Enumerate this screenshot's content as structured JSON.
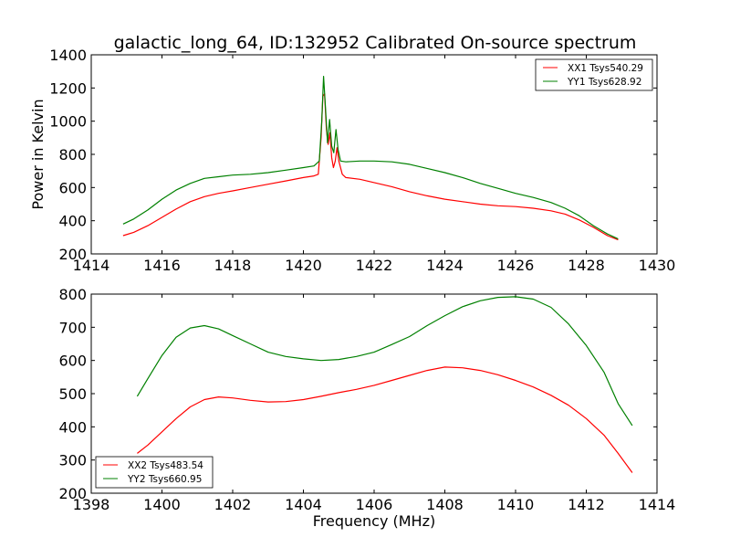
{
  "figure": {
    "title": "galactic_long_64, ID:132952 Calibrated On-source spectrum"
  },
  "chart_data": [
    {
      "type": "line",
      "title": "galactic_long_64, ID:132952 Calibrated On-source spectrum",
      "xlabel": "",
      "ylabel": "Power in Kelvin",
      "xlim": [
        1414,
        1430
      ],
      "ylim": [
        200,
        1400
      ],
      "xticks": [
        "1414",
        "1416",
        "1418",
        "1420",
        "1422",
        "1424",
        "1426",
        "1428",
        "1430"
      ],
      "yticks": [
        "200",
        "400",
        "600",
        "800",
        "1000",
        "1200",
        "1400"
      ],
      "grid": false,
      "legend_position": "upper right",
      "series": [
        {
          "name": "XX1 Tsys540.29",
          "color": "#ff0000",
          "points": [
            [
              1414.9,
              310
            ],
            [
              1415.2,
              330
            ],
            [
              1415.6,
              370
            ],
            [
              1416.0,
              420
            ],
            [
              1416.4,
              470
            ],
            [
              1416.8,
              515
            ],
            [
              1417.2,
              545
            ],
            [
              1417.6,
              565
            ],
            [
              1418.0,
              580
            ],
            [
              1418.5,
              600
            ],
            [
              1419.0,
              620
            ],
            [
              1419.5,
              640
            ],
            [
              1420.0,
              660
            ],
            [
              1420.3,
              670
            ],
            [
              1420.42,
              680
            ],
            [
              1420.5,
              900
            ],
            [
              1420.55,
              1150
            ],
            [
              1420.6,
              1165
            ],
            [
              1420.65,
              950
            ],
            [
              1420.7,
              860
            ],
            [
              1420.75,
              930
            ],
            [
              1420.8,
              780
            ],
            [
              1420.85,
              720
            ],
            [
              1420.9,
              760
            ],
            [
              1420.95,
              840
            ],
            [
              1421.0,
              760
            ],
            [
              1421.1,
              680
            ],
            [
              1421.2,
              660
            ],
            [
              1421.6,
              650
            ],
            [
              1422.0,
              630
            ],
            [
              1422.5,
              605
            ],
            [
              1423.0,
              575
            ],
            [
              1423.5,
              550
            ],
            [
              1424.0,
              530
            ],
            [
              1424.5,
              515
            ],
            [
              1425.0,
              500
            ],
            [
              1425.5,
              490
            ],
            [
              1426.0,
              485
            ],
            [
              1426.5,
              475
            ],
            [
              1427.0,
              460
            ],
            [
              1427.4,
              440
            ],
            [
              1427.8,
              405
            ],
            [
              1428.2,
              360
            ],
            [
              1428.6,
              310
            ],
            [
              1428.9,
              285
            ]
          ]
        },
        {
          "name": "YY1 Tsys628.92",
          "color": "#008000",
          "points": [
            [
              1414.9,
              380
            ],
            [
              1415.2,
              410
            ],
            [
              1415.6,
              465
            ],
            [
              1416.0,
              530
            ],
            [
              1416.4,
              585
            ],
            [
              1416.8,
              625
            ],
            [
              1417.2,
              655
            ],
            [
              1417.6,
              665
            ],
            [
              1418.0,
              675
            ],
            [
              1418.5,
              680
            ],
            [
              1419.0,
              690
            ],
            [
              1419.5,
              705
            ],
            [
              1420.0,
              720
            ],
            [
              1420.3,
              730
            ],
            [
              1420.45,
              760
            ],
            [
              1420.52,
              1000
            ],
            [
              1420.57,
              1270
            ],
            [
              1420.62,
              1100
            ],
            [
              1420.68,
              870
            ],
            [
              1420.74,
              1010
            ],
            [
              1420.8,
              850
            ],
            [
              1420.86,
              810
            ],
            [
              1420.92,
              950
            ],
            [
              1420.98,
              830
            ],
            [
              1421.05,
              760
            ],
            [
              1421.2,
              755
            ],
            [
              1421.6,
              760
            ],
            [
              1422.0,
              760
            ],
            [
              1422.5,
              755
            ],
            [
              1423.0,
              740
            ],
            [
              1423.5,
              715
            ],
            [
              1424.0,
              690
            ],
            [
              1424.5,
              660
            ],
            [
              1425.0,
              625
            ],
            [
              1425.5,
              595
            ],
            [
              1426.0,
              565
            ],
            [
              1426.5,
              540
            ],
            [
              1427.0,
              510
            ],
            [
              1427.4,
              475
            ],
            [
              1427.8,
              430
            ],
            [
              1428.2,
              370
            ],
            [
              1428.6,
              320
            ],
            [
              1428.9,
              290
            ]
          ]
        }
      ]
    },
    {
      "type": "line",
      "title": "",
      "xlabel": "Frequency (MHz)",
      "ylabel": "",
      "xlim": [
        1398,
        1414
      ],
      "ylim": [
        200,
        800
      ],
      "xticks": [
        "1398",
        "1400",
        "1402",
        "1404",
        "1406",
        "1408",
        "1410",
        "1412",
        "1414"
      ],
      "yticks": [
        "200",
        "300",
        "400",
        "500",
        "600",
        "700",
        "800"
      ],
      "grid": false,
      "legend_position": "lower left",
      "series": [
        {
          "name": "XX2 Tsys483.54",
          "color": "#ff0000",
          "points": [
            [
              1399.3,
              320
            ],
            [
              1399.6,
              345
            ],
            [
              1400.0,
              385
            ],
            [
              1400.4,
              425
            ],
            [
              1400.8,
              460
            ],
            [
              1401.2,
              482
            ],
            [
              1401.6,
              490
            ],
            [
              1402.0,
              487
            ],
            [
              1402.5,
              480
            ],
            [
              1403.0,
              475
            ],
            [
              1403.5,
              476
            ],
            [
              1404.0,
              482
            ],
            [
              1404.5,
              492
            ],
            [
              1405.0,
              503
            ],
            [
              1405.5,
              513
            ],
            [
              1406.0,
              525
            ],
            [
              1406.5,
              540
            ],
            [
              1407.0,
              555
            ],
            [
              1407.5,
              570
            ],
            [
              1408.0,
              580
            ],
            [
              1408.5,
              578
            ],
            [
              1409.0,
              570
            ],
            [
              1409.5,
              557
            ],
            [
              1410.0,
              540
            ],
            [
              1410.5,
              520
            ],
            [
              1411.0,
              495
            ],
            [
              1411.5,
              465
            ],
            [
              1412.0,
              425
            ],
            [
              1412.5,
              375
            ],
            [
              1412.9,
              320
            ],
            [
              1413.3,
              262
            ]
          ]
        },
        {
          "name": "YY2 Tsys660.95",
          "color": "#008000",
          "points": [
            [
              1399.3,
              492
            ],
            [
              1399.6,
              545
            ],
            [
              1400.0,
              615
            ],
            [
              1400.4,
              670
            ],
            [
              1400.8,
              698
            ],
            [
              1401.2,
              705
            ],
            [
              1401.6,
              695
            ],
            [
              1402.0,
              675
            ],
            [
              1402.5,
              650
            ],
            [
              1403.0,
              625
            ],
            [
              1403.5,
              612
            ],
            [
              1404.0,
              605
            ],
            [
              1404.5,
              600
            ],
            [
              1405.0,
              603
            ],
            [
              1405.5,
              612
            ],
            [
              1406.0,
              625
            ],
            [
              1406.5,
              648
            ],
            [
              1407.0,
              672
            ],
            [
              1407.5,
              705
            ],
            [
              1408.0,
              735
            ],
            [
              1408.5,
              762
            ],
            [
              1409.0,
              780
            ],
            [
              1409.5,
              790
            ],
            [
              1410.0,
              792
            ],
            [
              1410.5,
              785
            ],
            [
              1411.0,
              760
            ],
            [
              1411.5,
              710
            ],
            [
              1412.0,
              645
            ],
            [
              1412.5,
              565
            ],
            [
              1412.9,
              470
            ],
            [
              1413.3,
              404
            ]
          ]
        }
      ]
    }
  ]
}
